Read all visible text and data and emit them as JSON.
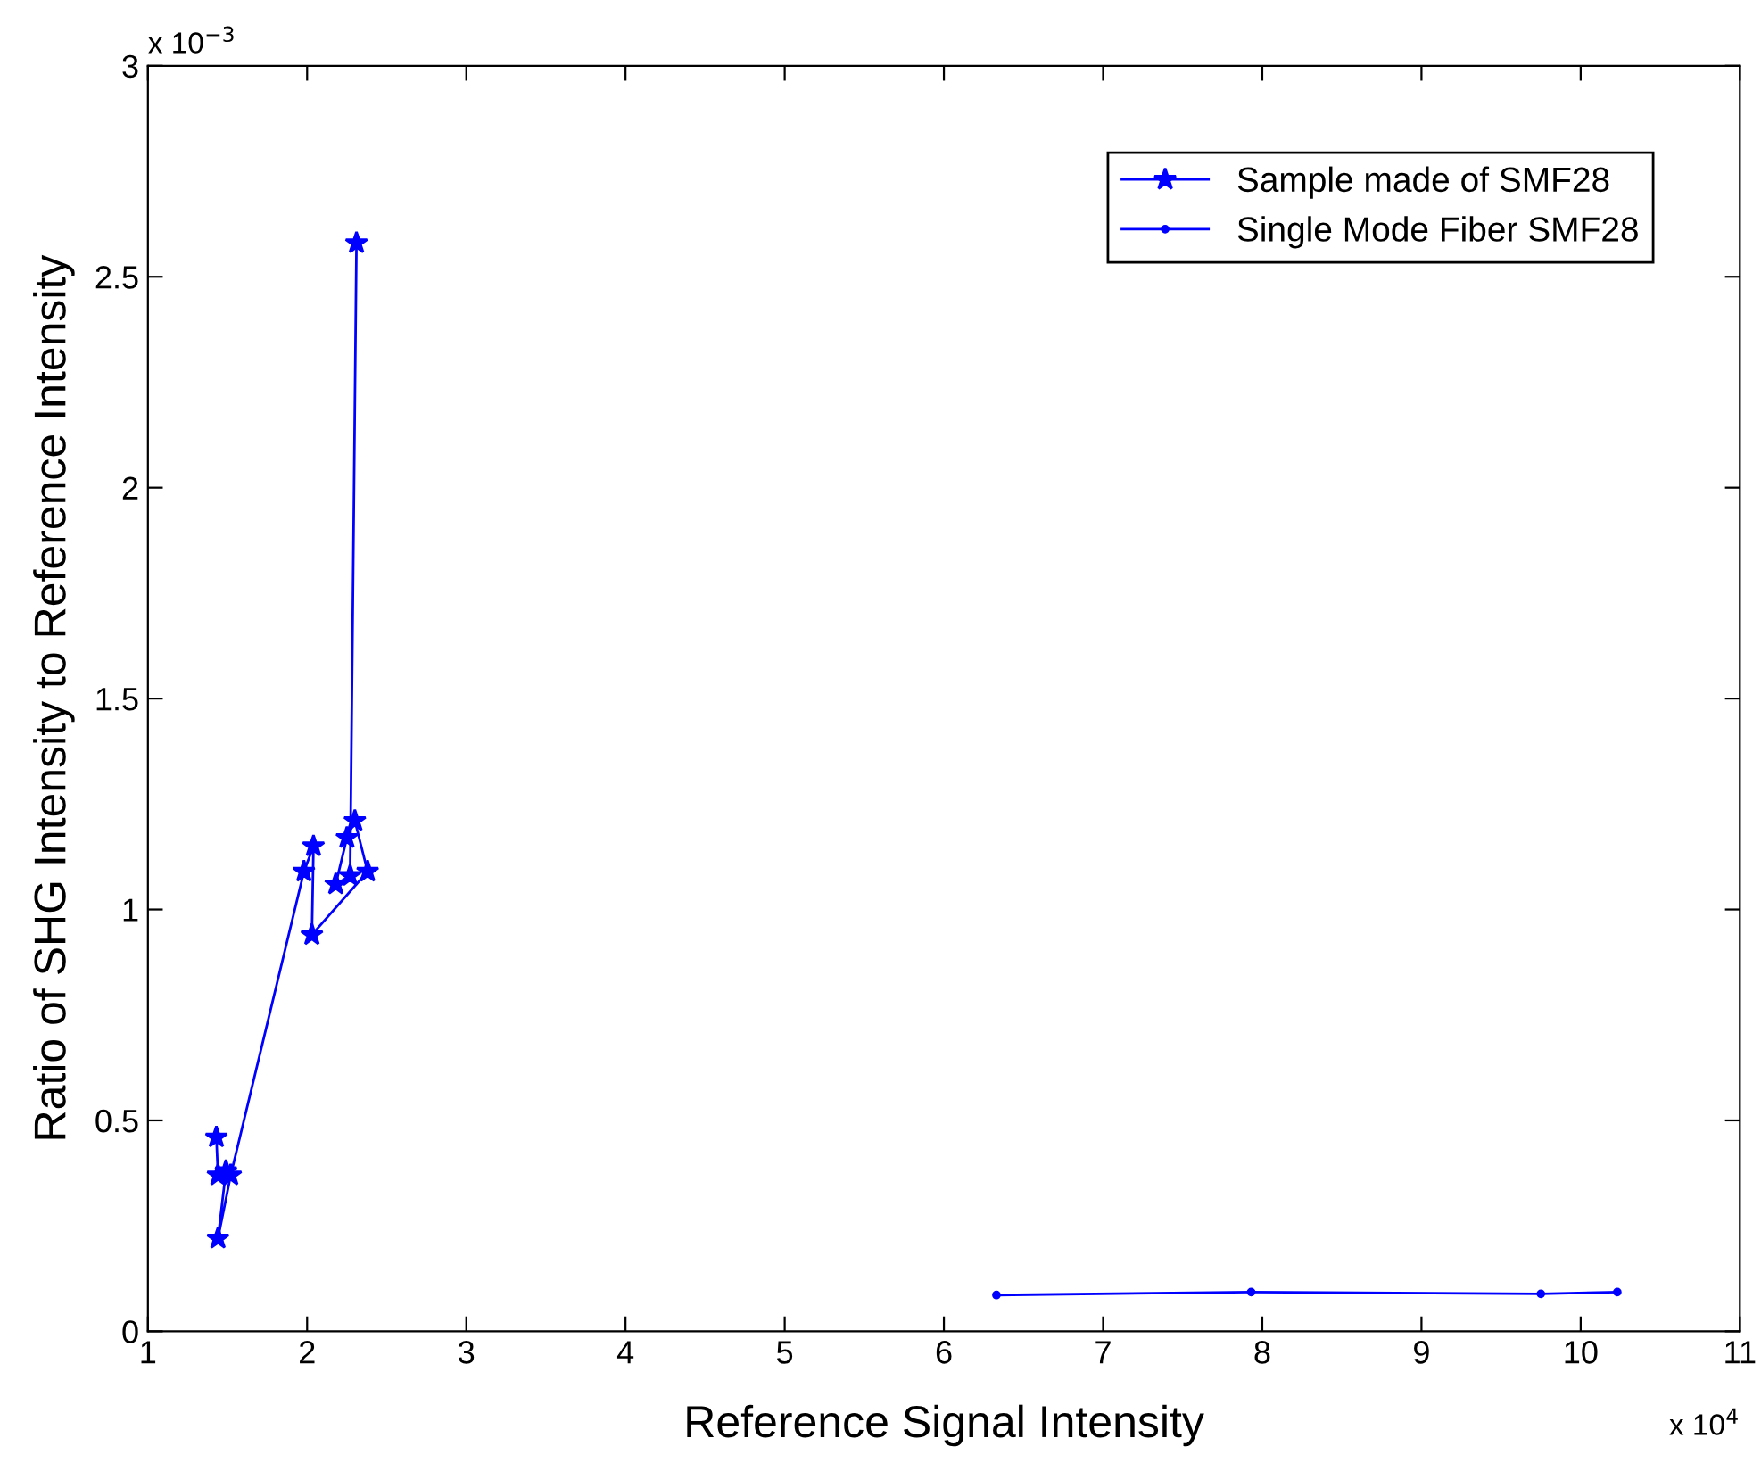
{
  "chart_data": {
    "type": "line",
    "xlabel": "Reference Signal Intensity",
    "ylabel": "Ratio of SHG Intensity to Reference Intensity",
    "annotations": [
      "x 10$^{−3}$",
      "x 10$^{4}$"
    ],
    "series": [
      {
        "name": "Sample made of SMF28",
        "color": "#0000ff",
        "marker": "star",
        "x": [
          1.43,
          1.44,
          1.49,
          1.44,
          1.52,
          1.98,
          2.04,
          2.03,
          2.38,
          2.3,
          2.25,
          2.18,
          2.27,
          2.31
        ],
        "values": [
          0.46,
          0.37,
          0.38,
          0.22,
          0.37,
          1.09,
          1.15,
          0.94,
          1.09,
          1.21,
          1.17,
          1.06,
          1.08,
          2.58
        ]
      },
      {
        "name": "Single Mode Fiber SMF28",
        "color": "#0000ff",
        "marker": "circle",
        "x": [
          6.33,
          7.93,
          9.75,
          10.23
        ],
        "values": [
          0.086,
          0.093,
          0.089,
          0.093
        ]
      }
    ],
    "xlim": [
      1,
      11
    ],
    "xticks": [
      1,
      2,
      3,
      4,
      5,
      6,
      7,
      8,
      9,
      10,
      11
    ],
    "ylim": [
      0,
      3
    ],
    "yticks": [
      0,
      0.5,
      1,
      1.5,
      2,
      2.5,
      3
    ],
    "grid": false,
    "legend": "top right",
    "line_style": "solid"
  }
}
